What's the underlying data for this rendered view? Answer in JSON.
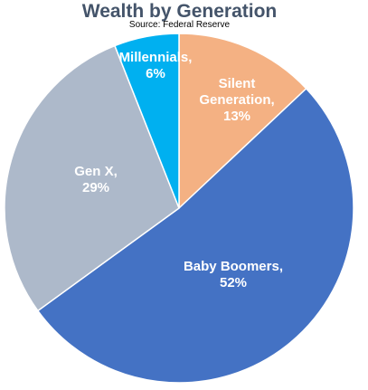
{
  "chart_data": {
    "type": "pie",
    "title": "Wealth by Generation",
    "subtitle": "Source: Federal Reserve",
    "slices": [
      {
        "name": "Silent Generation",
        "label_lines": [
          "Silent",
          "Generation,",
          "13%"
        ],
        "value": 13,
        "color": "#f4b183"
      },
      {
        "name": "Baby Boomers",
        "label_lines": [
          "Baby Boomers,",
          "52%"
        ],
        "value": 52,
        "color": "#4472c4"
      },
      {
        "name": "Gen X",
        "label_lines": [
          "Gen X,",
          "29%"
        ],
        "value": 29,
        "color": "#adb9ca"
      },
      {
        "name": "Millennials",
        "label_lines": [
          "Millennials,",
          "6%"
        ],
        "value": 6,
        "color": "#00b0f0"
      }
    ],
    "start": "12 o'clock",
    "direction": "clockwise",
    "legend": "none"
  }
}
